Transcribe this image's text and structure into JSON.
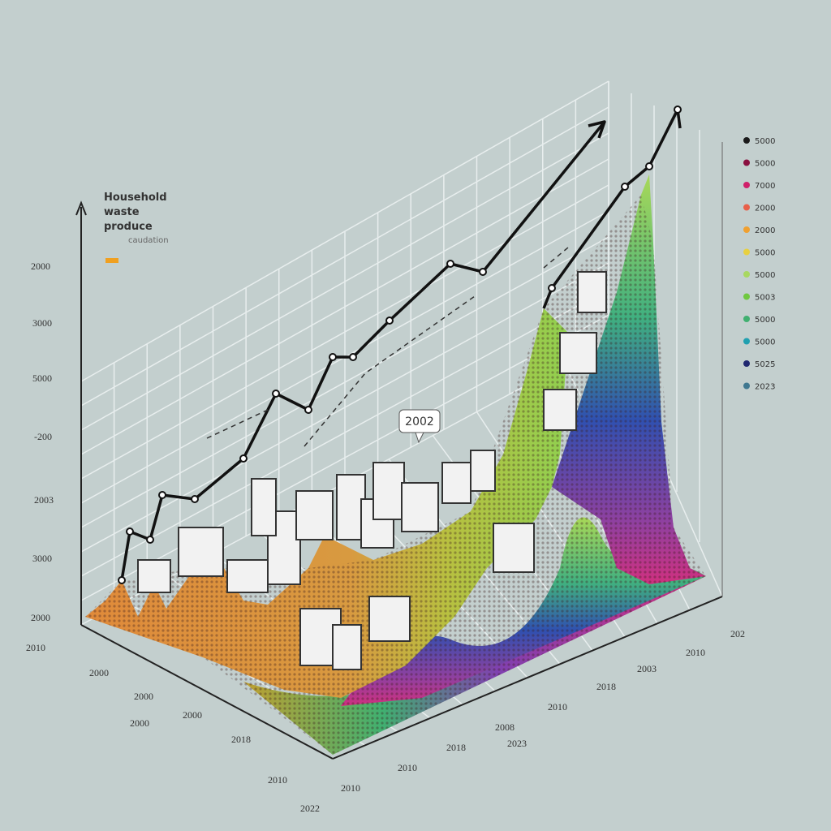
{
  "title_lines": [
    "Household",
    "waste",
    "produce"
  ],
  "key": {
    "label": "caudation",
    "color": "#f0a020"
  },
  "callout": "2002",
  "y_labels": [
    "2000",
    "3000",
    "5000",
    "-200",
    "2003",
    "3000",
    "2000"
  ],
  "front_labels": [
    "2010",
    "2000",
    "2000",
    "2000",
    "2000",
    "2018",
    "2010",
    "2022",
    "2010"
  ],
  "right_labels": [
    "2010",
    "2018",
    "2008",
    "2023",
    "2010",
    "2018",
    "2003",
    "2010",
    "202"
  ],
  "legend": [
    {
      "label": "5000",
      "color": "#1a1a1a"
    },
    {
      "label": "5000",
      "color": "#8a1040"
    },
    {
      "label": "7000",
      "color": "#d0206a"
    },
    {
      "label": "2000",
      "color": "#e8604a"
    },
    {
      "label": "2000",
      "color": "#f0a030"
    },
    {
      "label": "5000",
      "color": "#e8d040"
    },
    {
      "label": "5000",
      "color": "#a8d860"
    },
    {
      "label": "5003",
      "color": "#70c840"
    },
    {
      "label": "5000",
      "color": "#40b070"
    },
    {
      "label": "5000",
      "color": "#20a0b0"
    },
    {
      "label": "5025",
      "color": "#202870"
    },
    {
      "label": "2023",
      "color": "#407890"
    }
  ]
}
